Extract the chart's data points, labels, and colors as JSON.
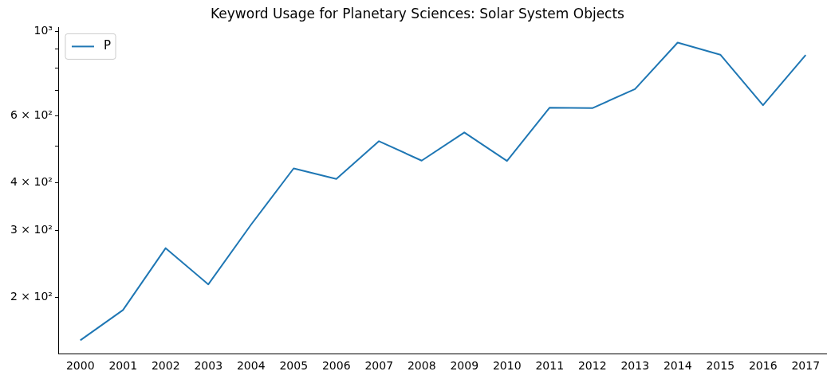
{
  "chart_data": {
    "type": "line",
    "title": "Keyword Usage for Planetary Sciences: Solar System Objects",
    "categories": [
      "2000",
      "2001",
      "2002",
      "2003",
      "2004",
      "2005",
      "2006",
      "2007",
      "2008",
      "2009",
      "2010",
      "2011",
      "2012",
      "2013",
      "2014",
      "2015",
      "2016",
      "2017"
    ],
    "series": [
      {
        "name": "P",
        "color": "#1f77b4",
        "values": [
          154,
          185,
          269,
          216,
          310,
          436,
          409,
          514,
          457,
          542,
          456,
          630,
          628,
          705,
          934,
          868,
          639,
          866
        ]
      }
    ],
    "log": "y",
    "ylim": [
      142,
      1024
    ],
    "yticks": [
      {
        "value": 200,
        "label": "2 × 10²"
      },
      {
        "value": 300,
        "label": "3 × 10²"
      },
      {
        "value": 400,
        "label": "4 × 10²"
      },
      {
        "value": 500,
        "label": null
      },
      {
        "value": 600,
        "label": "6 × 10²"
      },
      {
        "value": 700,
        "label": null
      },
      {
        "value": 800,
        "label": null
      },
      {
        "value": 900,
        "label": null
      },
      {
        "value": 1000,
        "label": "10³"
      }
    ],
    "grid": false,
    "legend": "top left",
    "marker": "none",
    "line_style": "solid"
  }
}
